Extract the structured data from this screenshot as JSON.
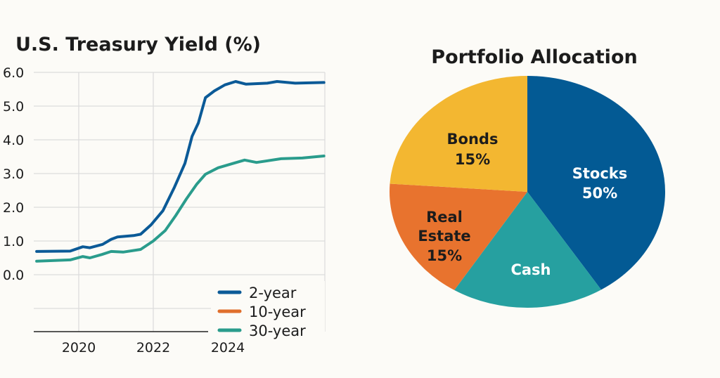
{
  "chart_data": [
    {
      "type": "line",
      "title": "U.S. Treasury Yield (%)",
      "xlabel": "",
      "ylabel": "",
      "ylim": [
        -1.6,
        6.0
      ],
      "xlim": [
        2018.8,
        2026.6
      ],
      "yticks": [
        "6.0",
        "5.0",
        "4.0",
        "3.0",
        "2.0",
        "1.0",
        "0.0"
      ],
      "ytick_values": [
        6,
        5,
        4,
        3,
        2,
        1,
        0
      ],
      "xticks": [
        "2020",
        "2022",
        "2024"
      ],
      "xtick_values": [
        2020,
        2022,
        2024
      ],
      "grid": true,
      "legend_position": "bottom-right",
      "series": [
        {
          "name": "2-year",
          "color": "#0b5a97",
          "x": [
            2018.87,
            2019.77,
            2020.11,
            2020.3,
            2020.64,
            2020.87,
            2021.04,
            2021.47,
            2021.66,
            2021.94,
            2022.26,
            2022.57,
            2022.85,
            2023.04,
            2023.21,
            2023.4,
            2023.64,
            2023.92,
            2024.21,
            2024.49,
            2025.06,
            2025.32,
            2025.81,
            2026.58
          ],
          "y": [
            0.69,
            0.7,
            0.83,
            0.8,
            0.9,
            1.05,
            1.12,
            1.16,
            1.2,
            1.48,
            1.9,
            2.6,
            3.3,
            4.1,
            4.5,
            5.25,
            5.45,
            5.63,
            5.73,
            5.65,
            5.68,
            5.73,
            5.68,
            5.7
          ]
        },
        {
          "name": "10-year",
          "color": "#e06f2c",
          "x": [],
          "y": []
        },
        {
          "name": "30-year",
          "color": "#2a9c8c",
          "x": [
            2018.87,
            2019.77,
            2020.11,
            2020.3,
            2020.62,
            2020.87,
            2021.19,
            2021.66,
            2022.0,
            2022.32,
            2022.6,
            2022.89,
            2023.17,
            2023.4,
            2023.74,
            2024.11,
            2024.45,
            2024.77,
            2025.43,
            2026.0,
            2026.58
          ],
          "y": [
            0.4,
            0.44,
            0.54,
            0.5,
            0.6,
            0.69,
            0.67,
            0.75,
            1.0,
            1.31,
            1.75,
            2.25,
            2.69,
            2.98,
            3.17,
            3.29,
            3.4,
            3.33,
            3.44,
            3.46,
            3.52
          ]
        }
      ]
    },
    {
      "type": "pie",
      "title": "Portfolio Allocation",
      "slices": [
        {
          "label": "Stocks",
          "value_label": "50%",
          "value": 50,
          "color": "#035a94",
          "text_color": "#ffffff"
        },
        {
          "label": "Cash",
          "value_label": "",
          "value": null,
          "color": "#26a0a0",
          "text_color": "#ffffff"
        },
        {
          "label": "Real Estate",
          "label_lines": [
            "Real",
            "Estate"
          ],
          "value_label": "15%",
          "value": 15,
          "color": "#e8732e",
          "text_color": "#1c1c1c"
        },
        {
          "label": "Bonds",
          "value_label": "15%",
          "value": 15,
          "color": "#f3b731",
          "text_color": "#1c1c1c"
        }
      ]
    }
  ]
}
